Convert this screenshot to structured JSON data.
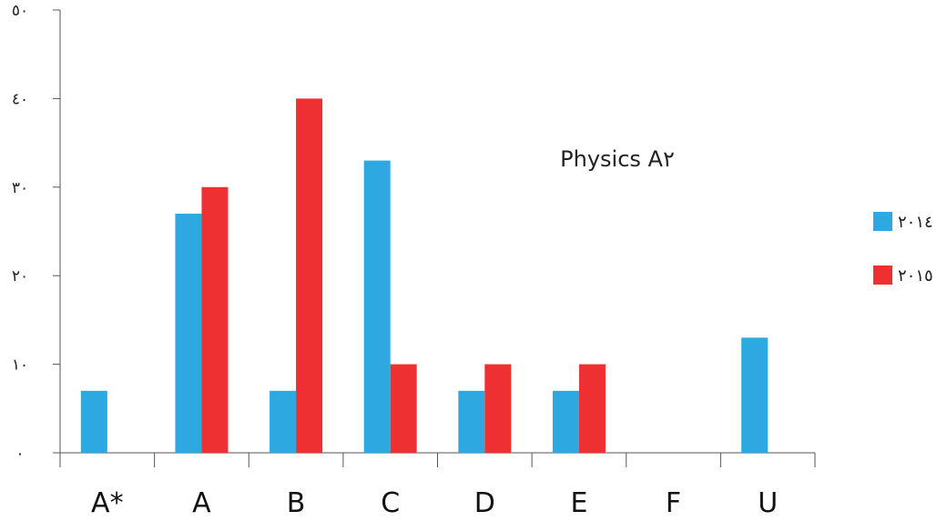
{
  "chart_data": {
    "type": "bar",
    "title": "Physics A٢",
    "categories": [
      "A*",
      "A",
      "B",
      "C",
      "D",
      "E",
      "F",
      "U"
    ],
    "series": [
      {
        "name": "٢٠١٤",
        "color": "#2ea8e0",
        "values": [
          7,
          27,
          7,
          33,
          7,
          7,
          0,
          13
        ]
      },
      {
        "name": "٢٠١٥",
        "color": "#ee3033",
        "values": [
          0,
          30,
          40,
          10,
          10,
          10,
          0,
          0
        ]
      }
    ],
    "yticks": [
      {
        "value": 0,
        "label": "٠"
      },
      {
        "value": 10,
        "label": "١٠"
      },
      {
        "value": 20,
        "label": "٢٠"
      },
      {
        "value": 30,
        "label": "٣٠"
      },
      {
        "value": 40,
        "label": "٤٠"
      },
      {
        "value": 50,
        "label": "٥٠"
      }
    ],
    "ylim": [
      0,
      50
    ],
    "grid": false,
    "legend_position": "right"
  }
}
